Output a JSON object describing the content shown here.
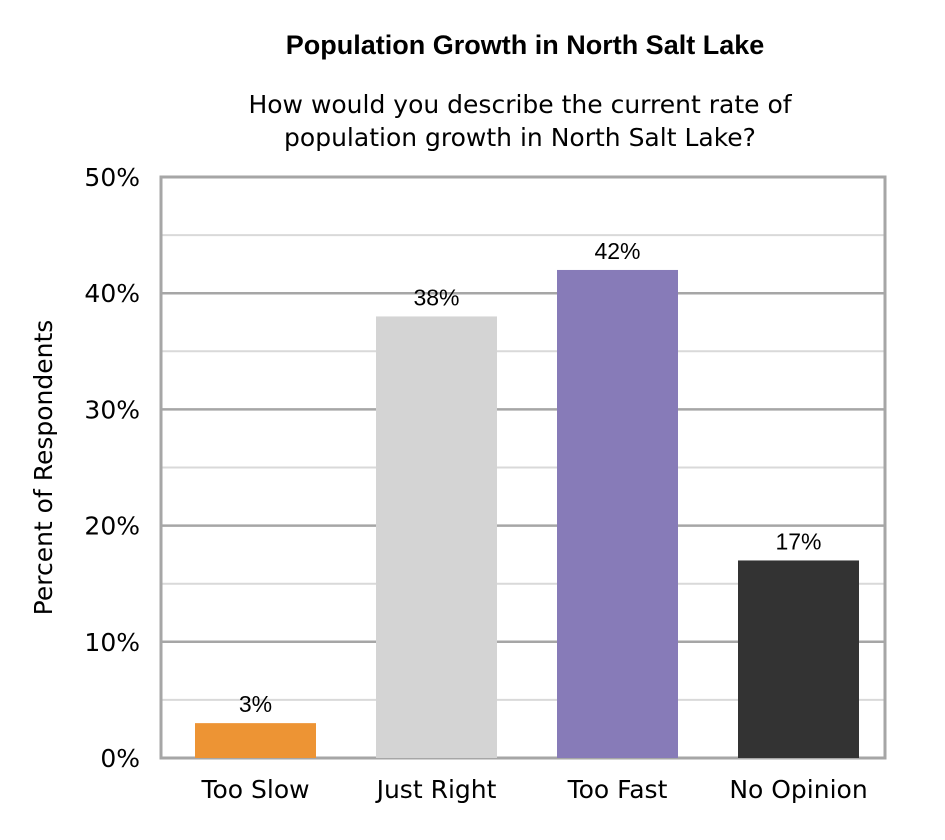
{
  "chart_data": {
    "type": "bar",
    "title": "Population Growth in North Salt Lake",
    "subtitle": "How would you describe the current rate of population growth in North Salt Lake?",
    "xlabel": "",
    "ylabel": "Percent of Respondents",
    "categories": [
      "Too Slow",
      "Just Right",
      "Too Fast",
      "No Opinion"
    ],
    "values": [
      3,
      38,
      42,
      17
    ],
    "data_labels": [
      "3%",
      "38%",
      "42%",
      "17%"
    ],
    "colors": [
      "#ed9434",
      "#d4d4d4",
      "#877bb8",
      "#333333"
    ],
    "ylim": [
      0,
      50
    ],
    "yticks": [
      "0%",
      "10%",
      "20%",
      "30%",
      "40%",
      "50%"
    ],
    "grid": true,
    "legend": "none"
  }
}
